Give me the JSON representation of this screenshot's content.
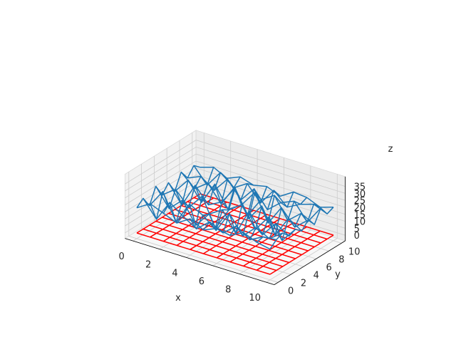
{
  "chart_data": {
    "type": "3d-wireframe",
    "title": "",
    "xlabel": "x",
    "ylabel": "y",
    "zlabel": "z",
    "xlim": [
      0,
      10
    ],
    "ylim": [
      0,
      10
    ],
    "zlim": [
      0,
      35
    ],
    "x_ticks": [
      "0",
      "2",
      "4",
      "6",
      "8",
      "10"
    ],
    "y_ticks": [
      "0",
      "2",
      "4",
      "6",
      "8",
      "10"
    ],
    "z_ticks": [
      "0",
      "5",
      "10",
      "15",
      "20",
      "25",
      "30",
      "35"
    ],
    "grid": true,
    "colors": {
      "surface": "#1f77b4",
      "base": "#ff0000",
      "pane": "#f2f2f2",
      "grid": "#cccccc"
    },
    "grid_x": [
      0,
      1,
      2,
      3,
      4,
      5,
      6,
      7,
      8,
      9,
      10
    ],
    "grid_y": [
      0,
      1,
      2,
      3,
      4,
      5,
      6,
      7,
      8,
      9,
      10
    ],
    "series": [
      {
        "style": "wireframe",
        "color": "#1f77b4",
        "z": [
          [
            18,
            24,
            20,
            16,
            22,
            17,
            21,
            19,
            24,
            20,
            18
          ],
          [
            22,
            10,
            25,
            18,
            12,
            20,
            15,
            23,
            16,
            21,
            22
          ],
          [
            14,
            27,
            8,
            24,
            19,
            11,
            26,
            13,
            22,
            17,
            24
          ],
          [
            25,
            12,
            21,
            6,
            17,
            23,
            9,
            28,
            14,
            25,
            19
          ],
          [
            16,
            23,
            13,
            24,
            4,
            20,
            27,
            12,
            24,
            10,
            21
          ],
          [
            22,
            9,
            26,
            15,
            20,
            33,
            14,
            26,
            8,
            23,
            17
          ],
          [
            13,
            24,
            11,
            27,
            12,
            18,
            30,
            11,
            25,
            14,
            22
          ],
          [
            24,
            15,
            22,
            10,
            25,
            8,
            22,
            28,
            13,
            21,
            16
          ],
          [
            17,
            21,
            14,
            25,
            13,
            24,
            12,
            20,
            24,
            12,
            25
          ],
          [
            23,
            12,
            24,
            16,
            22,
            11,
            23,
            14,
            19,
            22,
            18
          ],
          [
            19,
            22,
            17,
            21,
            18,
            20,
            16,
            22,
            21,
            17,
            20
          ]
        ]
      },
      {
        "style": "wireframe",
        "color": "#ff0000",
        "z_constant": 0
      }
    ]
  }
}
